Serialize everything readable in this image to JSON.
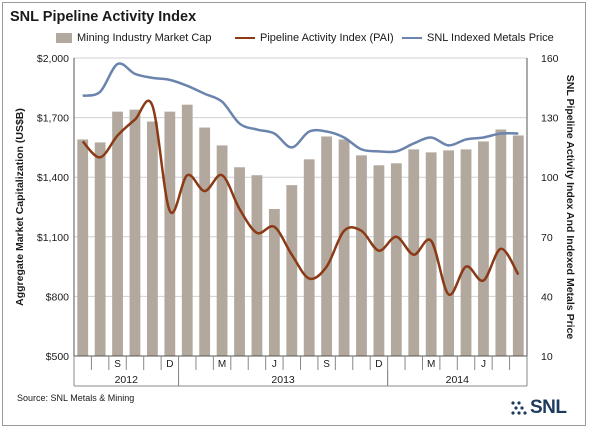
{
  "title": "SNL Pipeline Activity Index",
  "legend": {
    "bars": "Mining Industry Market Cap",
    "pai": "Pipeline Activity Index (PAI)",
    "metals": "SNL Indexed Metals Price"
  },
  "source": "Source: SNL Metals & Mining",
  "logo": "SNL",
  "colors": {
    "bars": "#b3a89e",
    "pai": "#8b3a16",
    "metals": "#6b84ad",
    "grid": "#d0d0d0"
  },
  "chart_data": {
    "type": "bar",
    "categories": [
      "2012-07",
      "2012-08",
      "2012-09",
      "2012-10",
      "2012-11",
      "2012-12",
      "2013-01",
      "2013-02",
      "2013-03",
      "2013-04",
      "2013-05",
      "2013-06",
      "2013-07",
      "2013-08",
      "2013-09",
      "2013-10",
      "2013-11",
      "2013-12",
      "2014-01",
      "2014-02",
      "2014-03",
      "2014-04",
      "2014-05",
      "2014-06",
      "2014-07",
      "2014-08"
    ],
    "month_labels": [
      "",
      "",
      "S",
      "",
      "",
      "D",
      "",
      "",
      "M",
      "",
      "",
      "J",
      "",
      "",
      "S",
      "",
      "",
      "D",
      "",
      "",
      "M",
      "",
      "",
      "J",
      "",
      ""
    ],
    "years": [
      {
        "label": "2012",
        "start": 0,
        "end": 5
      },
      {
        "label": "2013",
        "start": 6,
        "end": 17
      },
      {
        "label": "2014",
        "start": 18,
        "end": 25
      }
    ],
    "series": [
      {
        "name": "Mining Industry Market Cap",
        "type": "bar",
        "axis": "left",
        "values": [
          1590,
          1575,
          1730,
          1740,
          1680,
          1730,
          1765,
          1650,
          1560,
          1450,
          1410,
          1240,
          1360,
          1490,
          1605,
          1590,
          1510,
          1460,
          1470,
          1540,
          1525,
          1535,
          1540,
          1580,
          1640,
          1610
        ]
      },
      {
        "name": "Pipeline Activity Index (PAI)",
        "type": "line",
        "axis": "right",
        "values": [
          118,
          110,
          121,
          129,
          136,
          83,
          101,
          93,
          101,
          84,
          72,
          75,
          61,
          49,
          55,
          73,
          73,
          63,
          70,
          61,
          68,
          41,
          55,
          48,
          64,
          51
        ]
      },
      {
        "name": "SNL Indexed Metals Price",
        "type": "line",
        "axis": "right",
        "values": [
          141,
          143,
          157,
          152,
          150,
          149,
          146,
          142,
          138,
          127,
          124,
          122,
          115,
          123,
          123,
          120,
          114,
          113,
          113,
          117,
          120,
          116,
          119,
          120,
          122,
          122
        ]
      }
    ],
    "ylabel": "Aggregate Market Capitalization (US$B)",
    "ylabel_right": "SNL Pipeline Activity Index And Indexed Metals Price",
    "ylim": [
      500,
      2000
    ],
    "ylim_right": [
      10,
      160
    ],
    "yticks_left": [
      "$500",
      "$800",
      "$1,100",
      "$1,400",
      "$1,700",
      "$2,000"
    ],
    "yticks_right": [
      "10",
      "40",
      "70",
      "100",
      "130",
      "160"
    ],
    "grid": true,
    "legend_position": "top"
  }
}
